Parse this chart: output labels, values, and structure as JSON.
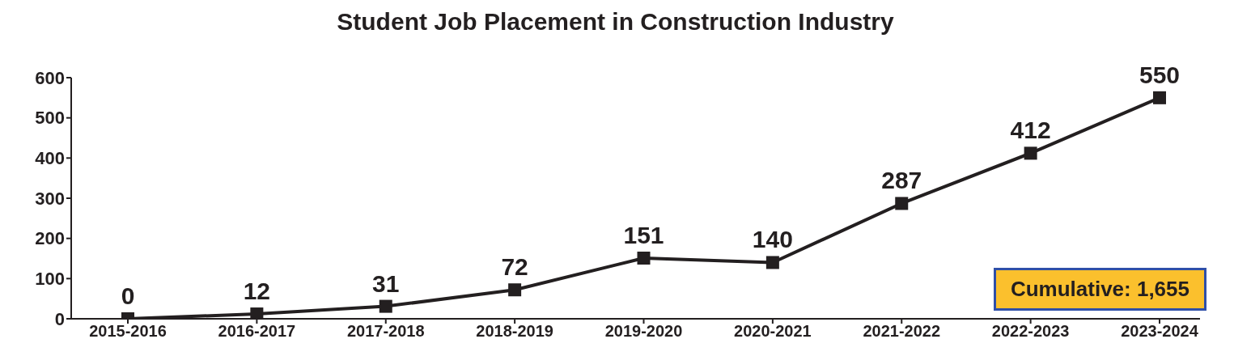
{
  "chart_data": {
    "type": "line",
    "title": "Student Job Placement in Construction Industry",
    "categories": [
      "2015-2016",
      "2016-2017",
      "2017-2018",
      "2018-2019",
      "2019-2020",
      "2020-2021",
      "2021-2022",
      "2022-2023",
      "2023-2024"
    ],
    "values": [
      0,
      12,
      31,
      72,
      151,
      140,
      287,
      412,
      550
    ],
    "color": "#231f20",
    "ylim": [
      0,
      600
    ],
    "yticks": [
      0,
      100,
      200,
      300,
      400,
      500,
      600
    ],
    "grid": false,
    "marker": "square",
    "line_style": "solid",
    "data_labels": true,
    "annotations": [
      "Cumulative: 1,655"
    ]
  }
}
